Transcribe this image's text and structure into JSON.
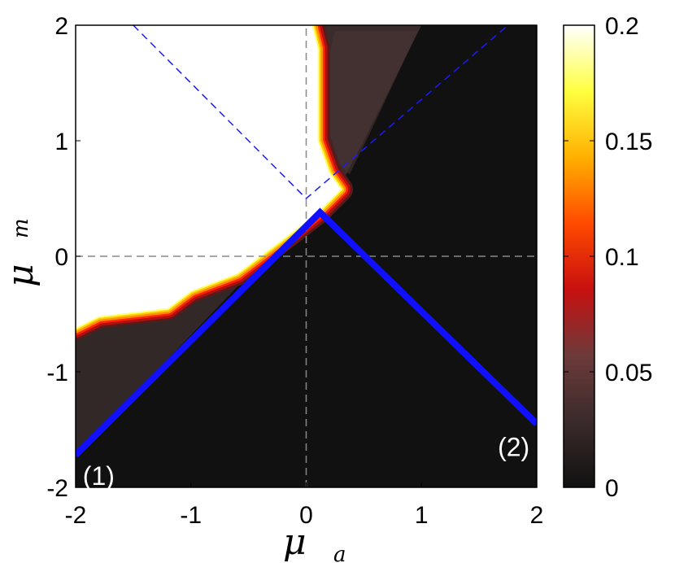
{
  "chart_data": {
    "type": "heatmap",
    "xlabel": {
      "symbol": "μ",
      "subscript": "a"
    },
    "ylabel": {
      "symbol": "μ",
      "subscript": "m"
    },
    "xlim": [
      -2,
      2
    ],
    "ylim": [
      -2,
      2
    ],
    "x_ticks": [
      "-2",
      "-1",
      "0",
      "1",
      "2"
    ],
    "y_ticks": [
      "-2",
      "-1",
      "0",
      "1",
      "2"
    ],
    "colorbar": {
      "range": [
        0,
        0.2
      ],
      "ticks": [
        "0",
        "0.05",
        "0.1",
        "0.15",
        "0.2"
      ],
      "colormap": [
        "#111111",
        "#3b2b2b",
        "#6d3a3a",
        "#c81010",
        "#ff4a00",
        "#ffb000",
        "#ffff40",
        "#ffffff"
      ]
    },
    "saturated_region_boundary": [
      [
        -2,
        -0.62
      ],
      [
        -1.8,
        -0.52
      ],
      [
        -1.2,
        -0.45
      ],
      [
        -1.0,
        -0.3
      ],
      [
        -0.6,
        -0.15
      ],
      [
        -0.2,
        0.15
      ],
      [
        0.1,
        0.38
      ],
      [
        0.3,
        0.58
      ],
      [
        0.2,
        0.72
      ],
      [
        0.1,
        1.0
      ],
      [
        0.1,
        1.8
      ],
      [
        0.05,
        2
      ]
    ],
    "dark_halo_region": [
      [
        0.15,
        2
      ],
      [
        1.0,
        2
      ],
      [
        0.5,
        1.0
      ],
      [
        0.3,
        0.62
      ],
      [
        0.2,
        0.72
      ],
      [
        0.1,
        1.0
      ],
      [
        0.1,
        1.8
      ]
    ],
    "solid_lines": [
      {
        "color": "#1010ff",
        "points": [
          [
            -2,
            -1.72
          ],
          [
            0.12,
            0.38
          ],
          [
            2,
            -1.45
          ]
        ]
      }
    ],
    "dashed_lines": [
      {
        "color": "#1a1aff",
        "points": [
          [
            -1.5,
            2
          ],
          [
            0,
            0.5
          ],
          [
            1.75,
            2
          ]
        ]
      },
      {
        "color": "#888888",
        "points": [
          [
            0,
            -2
          ],
          [
            0,
            2
          ]
        ]
      },
      {
        "color": "#888888",
        "points": [
          [
            -2,
            0
          ],
          [
            2,
            0
          ]
        ]
      }
    ],
    "annotations": [
      {
        "text": "(1)",
        "x": -1.8,
        "y": -1.9
      },
      {
        "text": "(2)",
        "x": 1.8,
        "y": -1.65
      }
    ]
  }
}
